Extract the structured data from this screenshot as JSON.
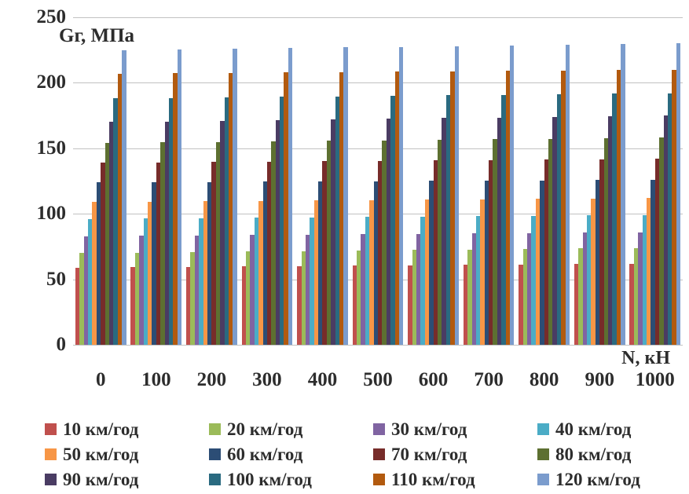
{
  "chart_data": {
    "type": "bar",
    "ylabel": "Gг, МПа",
    "xlabel": "N, кН",
    "ylim": [
      0,
      250
    ],
    "y_ticks": [
      0,
      50,
      100,
      150,
      200,
      250
    ],
    "categories": [
      "0",
      "100",
      "200",
      "300",
      "400",
      "500",
      "600",
      "700",
      "800",
      "900",
      "1000"
    ],
    "grid": true,
    "legend_position": "bottom",
    "series": [
      {
        "name": "10 км/год",
        "color": "#C0504D",
        "values": [
          59.0,
          59.3,
          59.6,
          59.9,
          60.2,
          60.5,
          60.8,
          61.1,
          61.4,
          61.7,
          62.0
        ]
      },
      {
        "name": "20 км/год",
        "color": "#9BBB59",
        "values": [
          70.0,
          70.4,
          70.8,
          71.2,
          71.6,
          72.0,
          72.4,
          72.8,
          73.2,
          73.6,
          74.0
        ]
      },
      {
        "name": "30 км/год",
        "color": "#8064A2",
        "values": [
          83.0,
          83.3,
          83.6,
          83.9,
          84.2,
          84.5,
          84.8,
          85.1,
          85.4,
          85.7,
          86.0
        ]
      },
      {
        "name": "40 км/год",
        "color": "#4BACC6",
        "values": [
          96.0,
          96.3,
          96.6,
          96.9,
          97.2,
          97.5,
          97.8,
          98.1,
          98.4,
          98.7,
          99.0
        ]
      },
      {
        "name": "50 км/год",
        "color": "#F79646",
        "values": [
          109.0,
          109.3,
          109.6,
          109.9,
          110.2,
          110.5,
          110.8,
          111.1,
          111.4,
          111.7,
          112.0
        ]
      },
      {
        "name": "60 км/год",
        "color": "#2C4D75",
        "values": [
          124.0,
          124.2,
          124.4,
          124.6,
          124.8,
          125.0,
          125.2,
          125.4,
          125.6,
          125.8,
          126.0
        ]
      },
      {
        "name": "70 км/год",
        "color": "#772C2A",
        "values": [
          139.0,
          139.3,
          139.6,
          139.9,
          140.2,
          140.5,
          140.8,
          141.1,
          141.4,
          141.7,
          142.0
        ]
      },
      {
        "name": "80 км/год",
        "color": "#5D7031",
        "values": [
          154.0,
          154.4,
          154.8,
          155.2,
          155.6,
          156.0,
          156.4,
          156.8,
          157.2,
          157.6,
          158.0
        ]
      },
      {
        "name": "90 км/год",
        "color": "#4A3C63",
        "values": [
          170.0,
          170.5,
          171.0,
          171.5,
          172.0,
          172.5,
          173.0,
          173.5,
          174.0,
          174.5,
          175.0
        ]
      },
      {
        "name": "100 км/год",
        "color": "#2A6A80",
        "values": [
          188.0,
          188.4,
          188.8,
          189.2,
          189.6,
          190.0,
          190.4,
          190.8,
          191.2,
          191.6,
          192.0
        ]
      },
      {
        "name": "110 км/год",
        "color": "#B25A0F",
        "values": [
          207.0,
          207.3,
          207.6,
          207.9,
          208.2,
          208.5,
          208.8,
          209.1,
          209.4,
          209.7,
          210.0
        ]
      },
      {
        "name": "120 км/год",
        "color": "#7B9CCD",
        "values": [
          225.0,
          225.5,
          226.0,
          226.5,
          227.0,
          227.5,
          228.0,
          228.5,
          229.0,
          229.5,
          230.0
        ]
      }
    ]
  },
  "colors": {
    "text": "#2d2d2d",
    "gridline": "#c2c2c2",
    "background": "#ffffff"
  }
}
